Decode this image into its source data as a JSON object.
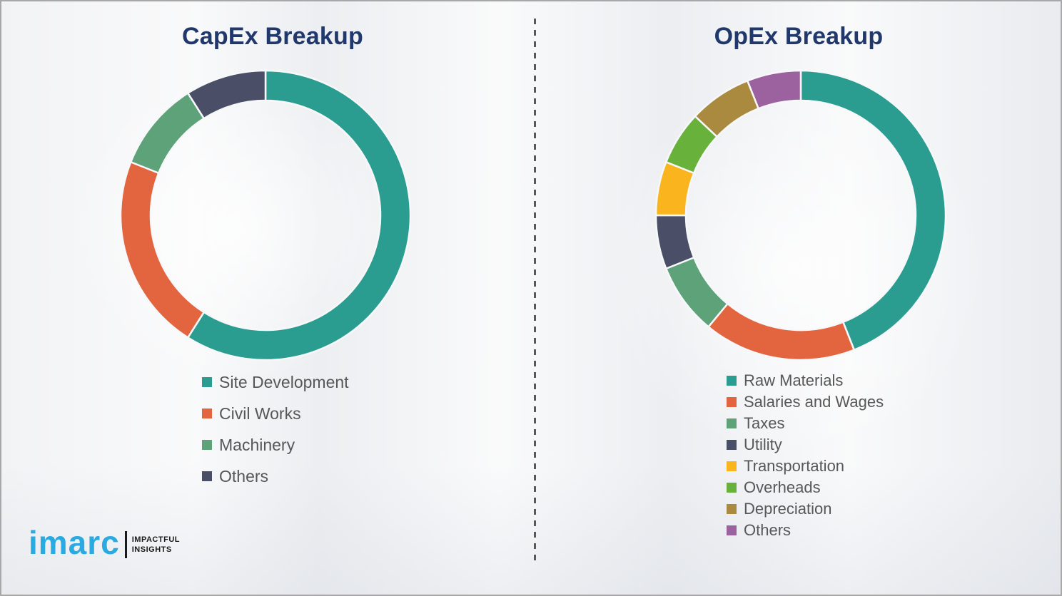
{
  "panels": [
    {
      "title": "CapEx Breakup"
    },
    {
      "title": "OpEx Breakup"
    }
  ],
  "chart_data": [
    {
      "type": "pie",
      "subtype": "donut",
      "title": "CapEx Breakup",
      "labels": [
        "Site Development",
        "Civil Works",
        "Machinery",
        "Others"
      ],
      "values": [
        59,
        22,
        10,
        9
      ],
      "colors": [
        "#2a9d90",
        "#e2653f",
        "#5ea27a",
        "#4a4e67"
      ],
      "start_angle_deg": 0,
      "direction": "clockwise",
      "legend_position": "below-left",
      "data_labels": false
    },
    {
      "type": "pie",
      "subtype": "donut",
      "title": "OpEx Breakup",
      "labels": [
        "Raw Materials",
        "Salaries and Wages",
        "Taxes",
        "Utility",
        "Transportation",
        "Overheads",
        "Depreciation",
        "Others"
      ],
      "values": [
        44,
        17,
        8,
        6,
        6,
        6,
        7,
        6
      ],
      "colors": [
        "#2a9d90",
        "#e2653f",
        "#5ea27a",
        "#4a4e67",
        "#f9b41e",
        "#68b23c",
        "#a98a3e",
        "#9c619f"
      ],
      "start_angle_deg": 0,
      "direction": "clockwise",
      "legend_position": "below-left",
      "data_labels": false
    }
  ],
  "divider_style": "vertical-dashed",
  "title_color": "#20386b",
  "legend_text_color": "#575757",
  "branding": {
    "logo_text": "imarc",
    "logo_color": "#29abe2",
    "tagline_line1": "IMPACTFUL",
    "tagline_line2": "INSIGHTS"
  }
}
